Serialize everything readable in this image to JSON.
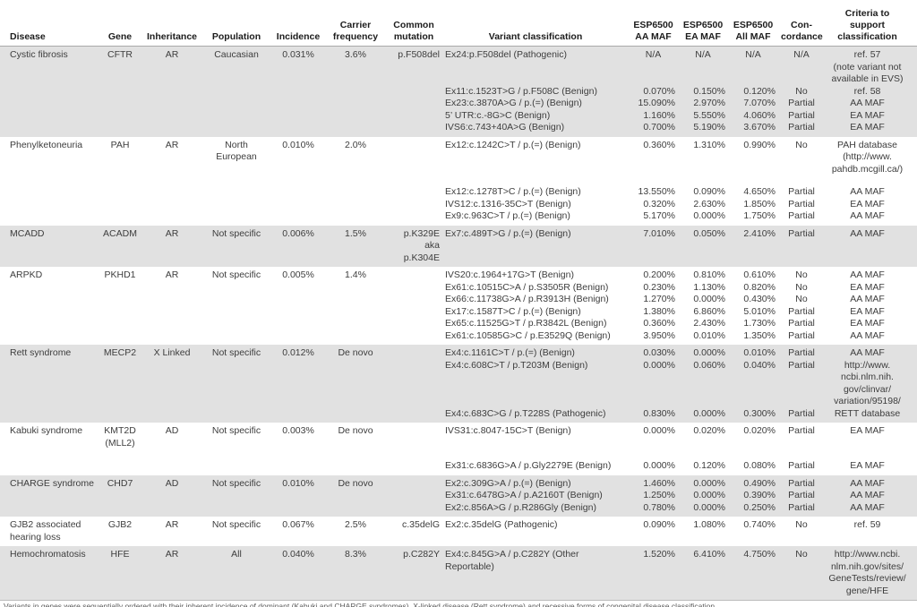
{
  "colors": {
    "row_shade": "#e1e1e1",
    "body_text": "#3d3d3d",
    "header_text": "#1c1c1c",
    "header_rule": "#a9a9a9"
  },
  "table": {
    "columns": [
      {
        "id": "disease",
        "label": "Disease"
      },
      {
        "id": "gene",
        "label": "Gene"
      },
      {
        "id": "inheritance",
        "label": "Inheritance"
      },
      {
        "id": "population",
        "label": "Population"
      },
      {
        "id": "incidence",
        "label": "Incidence"
      },
      {
        "id": "carrier",
        "label": "Carrier\nfrequency"
      },
      {
        "id": "mutation",
        "label": "Common\nmutation"
      },
      {
        "id": "variant",
        "label": "Variant classification"
      },
      {
        "id": "aa_maf",
        "label": "ESP6500\nAA MAF"
      },
      {
        "id": "ea_maf",
        "label": "ESP6500\nEA MAF"
      },
      {
        "id": "all_maf",
        "label": "ESP6500\nAll MAF"
      },
      {
        "id": "concordance",
        "label": "Con-\ncordance"
      },
      {
        "id": "criteria",
        "label": "Criteria to\nsupport\nclassification"
      }
    ],
    "blocks": [
      {
        "disease": "Cystic fibrosis",
        "gene": "CFTR",
        "inheritance": "AR",
        "population": "Caucasian",
        "incidence": "0.031%",
        "carrier": "3.6%",
        "mutation": "p.F508del",
        "shaded": true,
        "variants": [
          {
            "variant": "Ex24:p.F508del (Pathogenic)",
            "aa_maf": "N/A",
            "ea_maf": "N/A",
            "all_maf": "N/A",
            "concordance": "N/A",
            "criteria": "ref. 57\n(note variant not\navailable in EVS)"
          },
          {
            "variant": "Ex11:c.1523T>G / p.F508C (Benign)",
            "aa_maf": "0.070%",
            "ea_maf": "0.150%",
            "all_maf": "0.120%",
            "concordance": "No",
            "criteria": "ref. 58"
          },
          {
            "variant": "Ex23:c.3870A>G / p.(=) (Benign)",
            "aa_maf": "15.090%",
            "ea_maf": "2.970%",
            "all_maf": "7.070%",
            "concordance": "Partial",
            "criteria": "AA MAF"
          },
          {
            "variant": "5’ UTR:c.-8G>C (Benign)",
            "aa_maf": "1.160%",
            "ea_maf": "5.550%",
            "all_maf": "4.060%",
            "concordance": "Partial",
            "criteria": "EA MAF"
          },
          {
            "variant": "IVS6:c.743+40A>G (Benign)",
            "aa_maf": "0.700%",
            "ea_maf": "5.190%",
            "all_maf": "3.670%",
            "concordance": "Partial",
            "criteria": "EA MAF"
          }
        ]
      },
      {
        "disease": "Phenylketoneuria",
        "gene": "PAH",
        "inheritance": "AR",
        "population": "North\nEuropean",
        "incidence": "0.010%",
        "carrier": "2.0%",
        "mutation": "",
        "shaded": false,
        "variants": [
          {
            "variant": "Ex12:c.1242C>T / p.(=) (Benign)",
            "aa_maf": "0.360%",
            "ea_maf": "1.310%",
            "all_maf": "0.990%",
            "concordance": "No",
            "criteria": "PAH database\n(http://www.\npahdb.mcgill.ca/)"
          },
          {
            "variant": "Ex12:c.1278T>C / p.(=) (Benign)",
            "aa_maf": "13.550%",
            "ea_maf": "0.090%",
            "all_maf": "4.650%",
            "concordance": "Partial",
            "criteria": "AA MAF"
          },
          {
            "variant": "IVS12:c.1316-35C>T (Benign)",
            "aa_maf": "0.320%",
            "ea_maf": "2.630%",
            "all_maf": "1.850%",
            "concordance": "Partial",
            "criteria": "EA MAF"
          },
          {
            "variant": "Ex9:c.963C>T / p.(=) (Benign)",
            "aa_maf": "5.170%",
            "ea_maf": "0.000%",
            "all_maf": "1.750%",
            "concordance": "Partial",
            "criteria": "AA MAF"
          }
        ]
      },
      {
        "disease": "MCADD",
        "gene": "ACADM",
        "inheritance": "AR",
        "population": "Not specific",
        "incidence": "0.006%",
        "carrier": "1.5%",
        "mutation": "p.K329E\naka p.K304E",
        "shaded": true,
        "variants": [
          {
            "variant": "Ex7:c.489T>G / p.(=) (Benign)",
            "aa_maf": "7.010%",
            "ea_maf": "0.050%",
            "all_maf": "2.410%",
            "concordance": "Partial",
            "criteria": "AA MAF"
          }
        ]
      },
      {
        "disease": "ARPKD",
        "gene": "PKHD1",
        "inheritance": "AR",
        "population": "Not specific",
        "incidence": "0.005%",
        "carrier": "1.4%",
        "mutation": "",
        "shaded": false,
        "variants": [
          {
            "variant": "IVS20:c.1964+17G>T (Benign)",
            "aa_maf": "0.200%",
            "ea_maf": "0.810%",
            "all_maf": "0.610%",
            "concordance": "No",
            "criteria": "AA MAF"
          },
          {
            "variant": "Ex61:c.10515C>A / p.S3505R (Benign)",
            "aa_maf": "0.230%",
            "ea_maf": "1.130%",
            "all_maf": "0.820%",
            "concordance": "No",
            "criteria": "EA MAF"
          },
          {
            "variant": "Ex66:c.11738G>A / p.R3913H (Benign)",
            "aa_maf": "1.270%",
            "ea_maf": "0.000%",
            "all_maf": "0.430%",
            "concordance": "No",
            "criteria": "AA MAF"
          },
          {
            "variant": "Ex17:c.1587T>C / p.(=) (Benign)",
            "aa_maf": "1.380%",
            "ea_maf": "6.860%",
            "all_maf": "5.010%",
            "concordance": "Partial",
            "criteria": "EA MAF"
          },
          {
            "variant": "Ex65:c.11525G>T / p.R3842L (Benign)",
            "aa_maf": "0.360%",
            "ea_maf": "2.430%",
            "all_maf": "1.730%",
            "concordance": "Partial",
            "criteria": "EA MAF"
          },
          {
            "variant": "Ex61:c.10585G>C / p.E3529Q (Benign)",
            "aa_maf": "3.950%",
            "ea_maf": "0.010%",
            "all_maf": "1.350%",
            "concordance": "Partial",
            "criteria": "AA MAF"
          }
        ]
      },
      {
        "disease": "Rett syndrome",
        "gene": "MECP2",
        "inheritance": "X Linked",
        "population": "Not specific",
        "incidence": "0.012%",
        "carrier": "De novo",
        "mutation": "",
        "shaded": true,
        "variants": [
          {
            "variant": "Ex4:c.1161C>T / p.(=) (Benign)",
            "aa_maf": "0.030%",
            "ea_maf": "0.000%",
            "all_maf": "0.010%",
            "concordance": "Partial",
            "criteria": "AA MAF"
          },
          {
            "variant": "Ex4:c.608C>T / p.T203M (Benign)",
            "aa_maf": "0.000%",
            "ea_maf": "0.060%",
            "all_maf": "0.040%",
            "concordance": "Partial",
            "criteria": "http://www.\nncbi.nlm.nih.\ngov/clinvar/\nvariation/95198/"
          },
          {
            "variant": "Ex4:c.683C>G / p.T228S (Pathogenic)",
            "aa_maf": "0.830%",
            "ea_maf": "0.000%",
            "all_maf": "0.300%",
            "concordance": "Partial",
            "criteria": "RETT database"
          }
        ]
      },
      {
        "disease": "Kabuki syndrome",
        "gene": "KMT2D\n(MLL2)",
        "inheritance": "AD",
        "population": "Not specific",
        "incidence": "0.003%",
        "carrier": "De novo",
        "mutation": "",
        "shaded": false,
        "variants": [
          {
            "variant": "IVS31:c.8047-15C>T (Benign)",
            "aa_maf": "0.000%",
            "ea_maf": "0.020%",
            "all_maf": "0.020%",
            "concordance": "Partial",
            "criteria": "EA MAF"
          },
          {
            "variant": "Ex31:c.6836G>A / p.Gly2279E (Benign)",
            "aa_maf": "0.000%",
            "ea_maf": "0.120%",
            "all_maf": "0.080%",
            "concordance": "Partial",
            "criteria": "EA MAF"
          }
        ]
      },
      {
        "disease": "CHARGE syndrome",
        "gene": "CHD7",
        "inheritance": "AD",
        "population": "Not specific",
        "incidence": "0.010%",
        "carrier": "De novo",
        "mutation": "",
        "shaded": true,
        "variants": [
          {
            "variant": "Ex2:c.309G>A / p.(=) (Benign)",
            "aa_maf": "1.460%",
            "ea_maf": "0.000%",
            "all_maf": "0.490%",
            "concordance": "Partial",
            "criteria": "AA MAF"
          },
          {
            "variant": "Ex31:c.6478G>A / p.A2160T (Benign)",
            "aa_maf": "1.250%",
            "ea_maf": "0.000%",
            "all_maf": "0.390%",
            "concordance": "Partial",
            "criteria": "AA MAF"
          },
          {
            "variant": "Ex2:c.856A>G / p.R286Gly (Benign)",
            "aa_maf": "0.780%",
            "ea_maf": "0.000%",
            "all_maf": "0.250%",
            "concordance": "Partial",
            "criteria": "AA MAF"
          }
        ]
      },
      {
        "disease": "GJB2 associated hearing loss",
        "gene": "GJB2",
        "inheritance": "AR",
        "population": "Not specific",
        "incidence": "0.067%",
        "carrier": "2.5%",
        "mutation": "c.35delG",
        "shaded": false,
        "variants": [
          {
            "variant": "Ex2:c.35delG (Pathogenic)",
            "aa_maf": "0.090%",
            "ea_maf": "1.080%",
            "all_maf": "0.740%",
            "concordance": "No",
            "criteria": "ref. 59"
          }
        ]
      },
      {
        "disease": "Hemochromatosis",
        "gene": "HFE",
        "inheritance": "AR",
        "population": "All",
        "incidence": "0.040%",
        "carrier": "8.3%",
        "mutation": "p.C282Y",
        "shaded": true,
        "variants": [
          {
            "variant": "Ex4:c.845G>A / p.C282Y (Other Reportable)",
            "aa_maf": "1.520%",
            "ea_maf": "6.410%",
            "all_maf": "4.750%",
            "concordance": "No",
            "criteria": "http://www.ncbi.\nnlm.nih.gov/sites/\nGeneTests/review/\ngene/HFE"
          }
        ]
      }
    ]
  },
  "footnote_clipped": "Variants in genes were sequentially ordered with their inherent incidence of dominant (Kabuki and CHARGE syndromes), X-linked disease (Rett syndrome) and recessive forms of congenital disease classification."
}
